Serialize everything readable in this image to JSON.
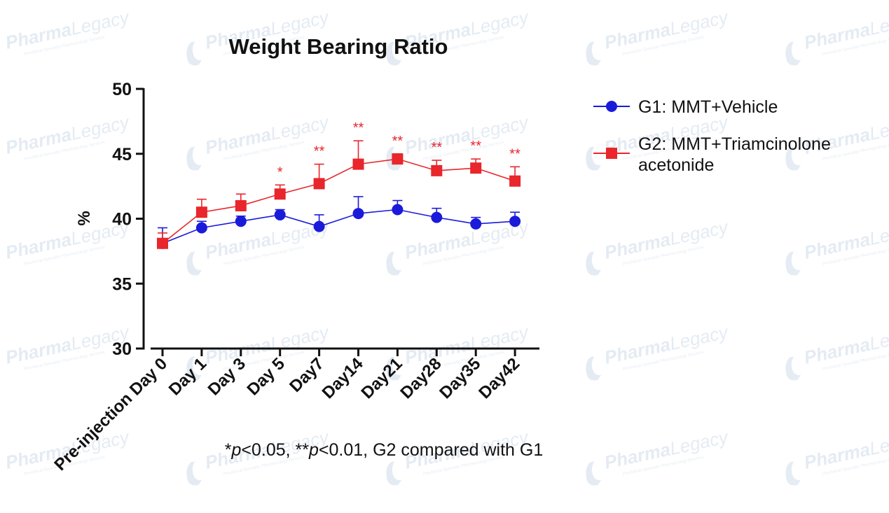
{
  "chart_data": {
    "type": "line",
    "title": "Weight Bearing Ratio",
    "xlabel": "",
    "ylabel": "%",
    "ylim": [
      30,
      50
    ],
    "yticks": [
      30,
      35,
      40,
      45,
      50
    ],
    "categories": [
      "Pre-injection Day 0",
      "Day 1",
      "Day 3",
      "Day 5",
      "Day7",
      "Day14",
      "Day21",
      "Day28",
      "Day35",
      "Day42"
    ],
    "series": [
      {
        "name": "G1: MMT+Vehicle",
        "color": "#1a1adb",
        "marker": "circle",
        "values": [
          38.1,
          39.3,
          39.8,
          40.3,
          39.4,
          40.4,
          40.7,
          40.1,
          39.6,
          39.8
        ],
        "error": [
          1.2,
          0.5,
          0.4,
          0.4,
          0.9,
          1.3,
          0.7,
          0.7,
          0.5,
          0.7
        ],
        "significance": [
          "",
          "",
          "",
          "",
          "",
          "",
          "",
          "",
          "",
          ""
        ]
      },
      {
        "name": "G2: MMT+Triamcinolone acetonide",
        "color": "#e8262b",
        "marker": "square",
        "values": [
          38.1,
          40.5,
          41.0,
          41.9,
          42.7,
          44.2,
          44.6,
          43.7,
          43.9,
          42.9
        ],
        "error": [
          0.8,
          1.0,
          0.9,
          0.7,
          1.5,
          1.8,
          0.4,
          0.8,
          0.7,
          1.1
        ],
        "significance": [
          "",
          "",
          "",
          "*",
          "**",
          "**",
          "**",
          "**",
          "**",
          "**"
        ]
      }
    ],
    "legend_position": "right",
    "footnote": {
      "parts": [
        {
          "text": "*",
          "italic": false
        },
        {
          "text": "p",
          "italic": true
        },
        {
          "text": "<0.05, **",
          "italic": false
        },
        {
          "text": "p",
          "italic": true
        },
        {
          "text": "<0.01, G2 compared with G1",
          "italic": false
        }
      ]
    },
    "watermark": {
      "brand_a": "Pharma",
      "brand_b": "Legacy",
      "tagline": "Preclinical Specialty Pharmacology Services"
    }
  }
}
